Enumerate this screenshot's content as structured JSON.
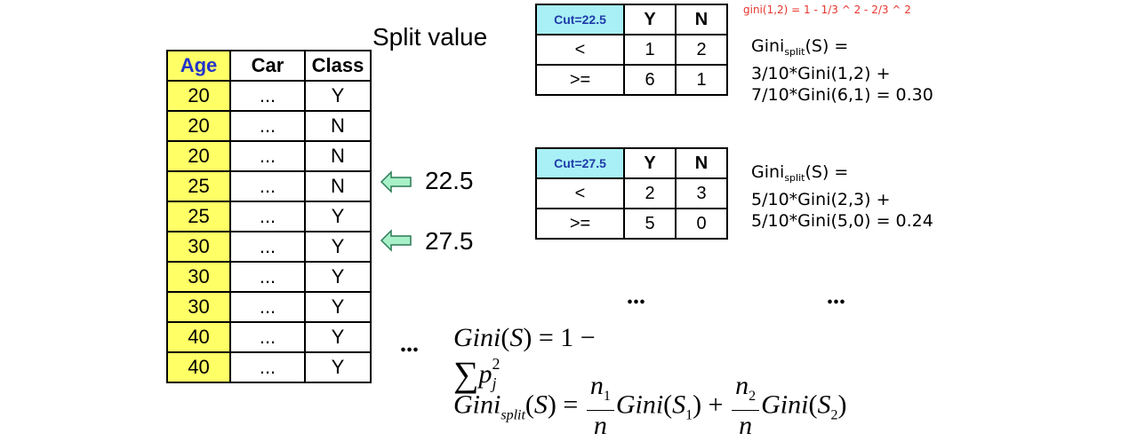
{
  "split_value_label": "Split value",
  "gini_note": "gini(1,2) = 1 - 1/3 ^ 2 - 2/3 ^ 2",
  "data_table": {
    "headers": [
      "Age",
      "Car",
      "Class"
    ],
    "rows": [
      [
        "20",
        "...",
        "Y"
      ],
      [
        "20",
        "...",
        "N"
      ],
      [
        "20",
        "...",
        "N"
      ],
      [
        "25",
        "...",
        "N"
      ],
      [
        "25",
        "...",
        "Y"
      ],
      [
        "30",
        "...",
        "Y"
      ],
      [
        "30",
        "...",
        "Y"
      ],
      [
        "30",
        "...",
        "Y"
      ],
      [
        "40",
        "...",
        "Y"
      ],
      [
        "40",
        "...",
        "Y"
      ]
    ]
  },
  "arrows": [
    {
      "label": "22.5",
      "color": "#a8f0c8"
    },
    {
      "label": "27.5",
      "color": "#a8f0c8"
    }
  ],
  "splits": [
    {
      "cut": "Cut=22.5",
      "col_y": "Y",
      "col_n": "N",
      "rows": [
        [
          "<",
          "1",
          "2"
        ],
        [
          ">=",
          "6",
          "1"
        ]
      ],
      "gini_line1_prefix": "Gini",
      "gini_line1_sub": "split",
      "gini_line1_suffix": "(S) =",
      "gini_line2": "3/10*Gini(1,2) +",
      "gini_line3": "7/10*Gini(6,1) = 0.30"
    },
    {
      "cut": "Cut=27.5",
      "col_y": "Y",
      "col_n": "N",
      "rows": [
        [
          "<",
          "2",
          "3"
        ],
        [
          ">=",
          "5",
          "0"
        ]
      ],
      "gini_line1_prefix": "Gini",
      "gini_line1_sub": "split",
      "gini_line1_suffix": "(S) =",
      "gini_line2": "5/10*Gini(2,3) +",
      "gini_line3": "5/10*Gini(5,0) = 0.24"
    }
  ],
  "ellipsis": "...",
  "colors": {
    "age_fill": "#ffff66",
    "age_header": "#2233cc",
    "cut_fill": "#a8f0f5",
    "note": "#e8352e",
    "arrow": "#a8f0c8"
  }
}
